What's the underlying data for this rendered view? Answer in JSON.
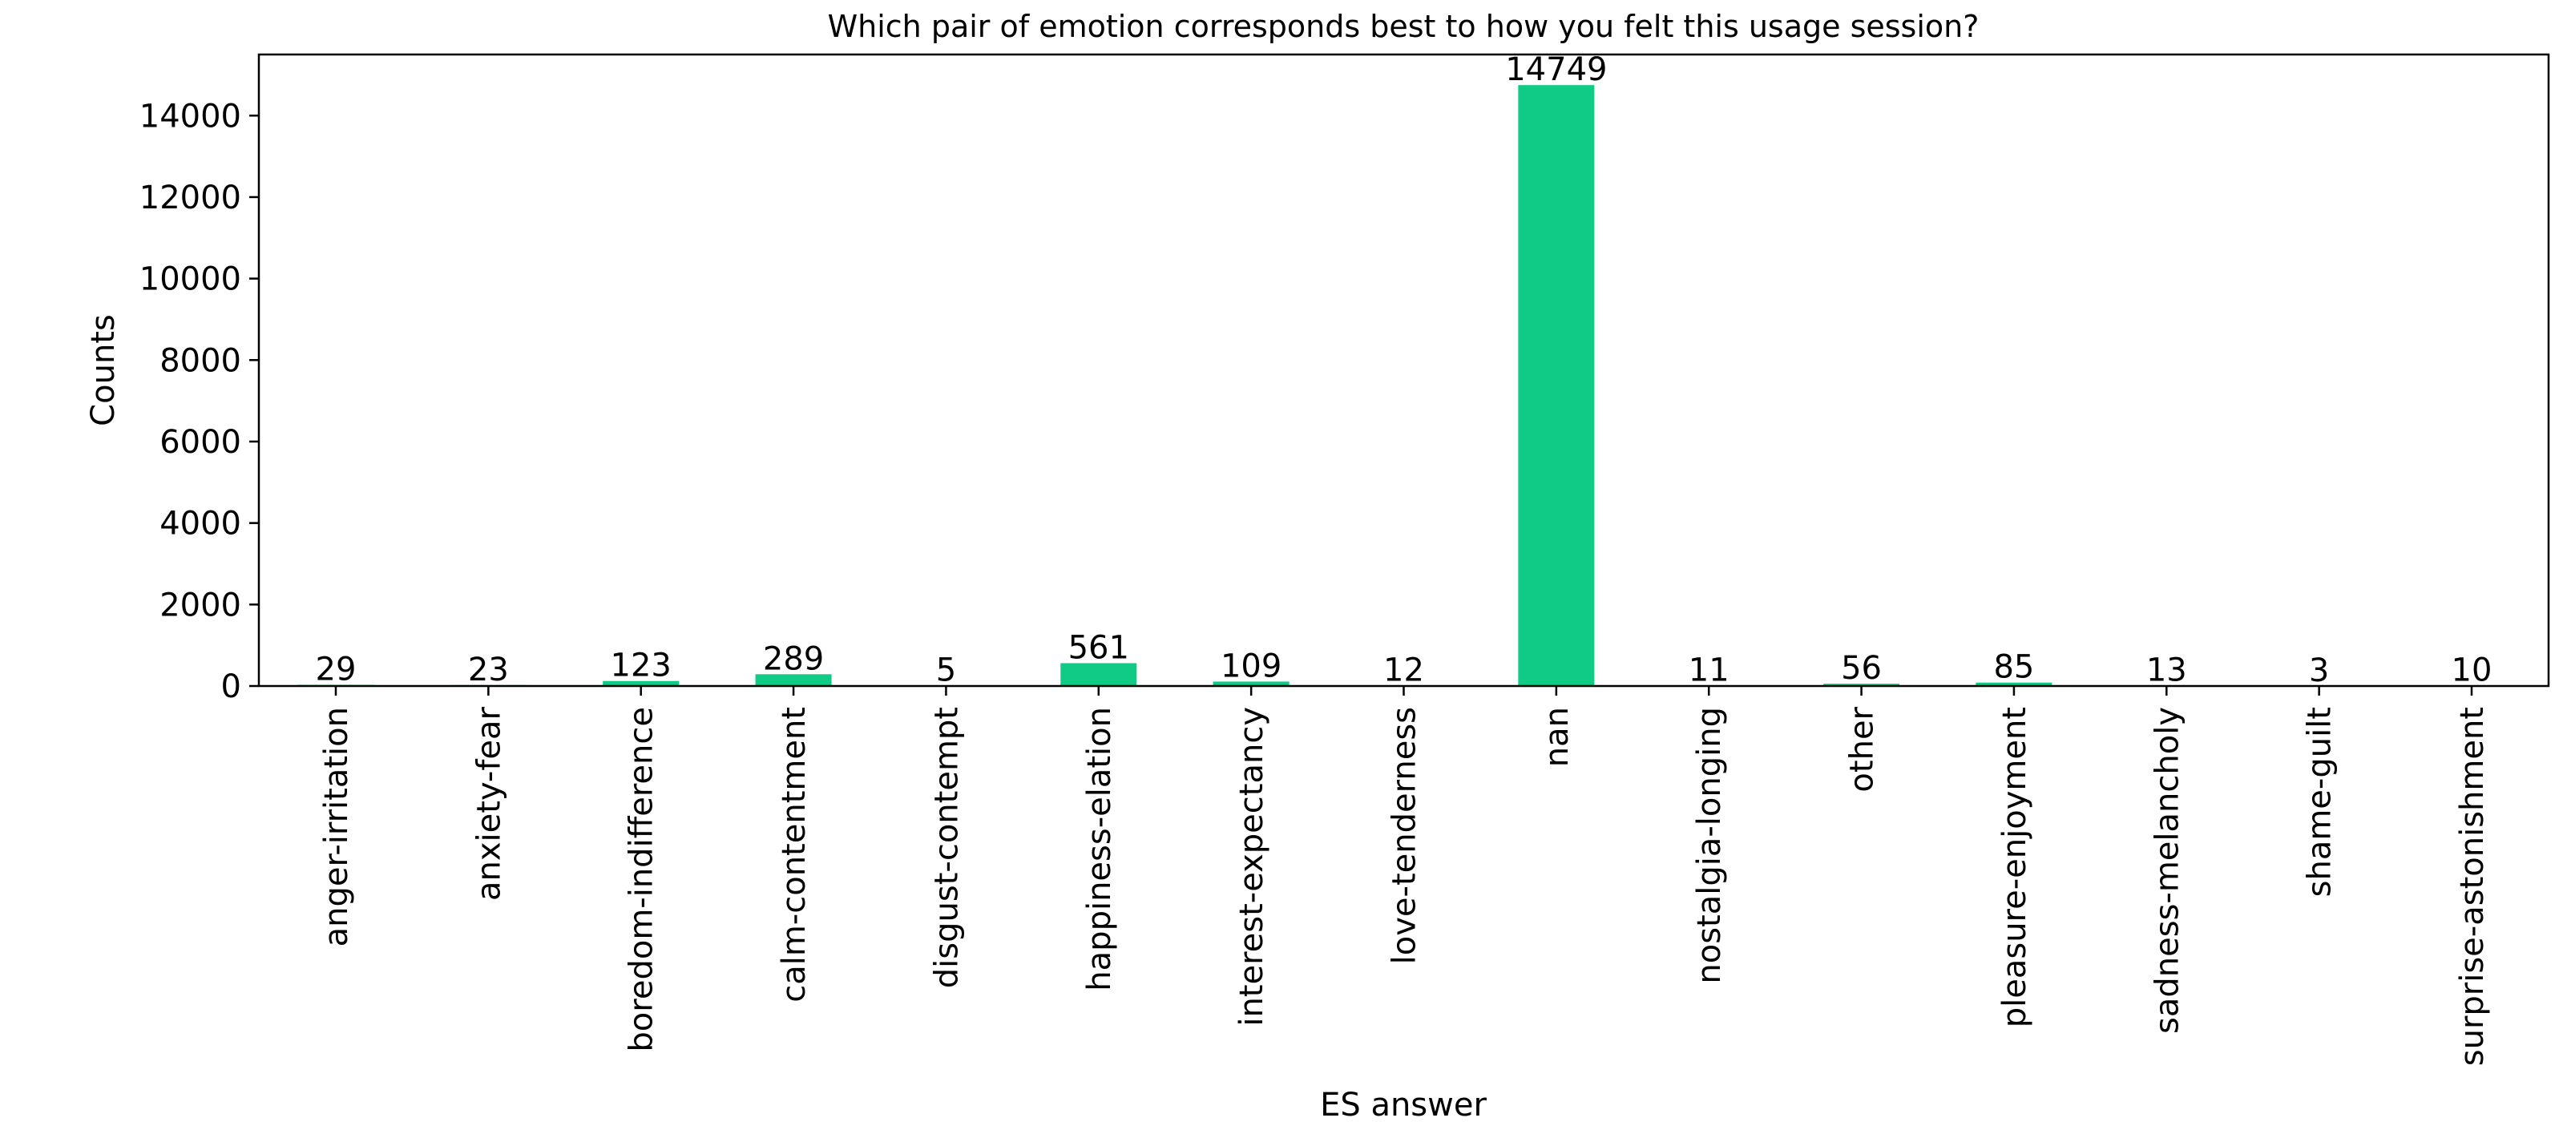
{
  "chart_data": {
    "type": "bar",
    "title": "Which pair of emotion corresponds best to how you felt this usage session?",
    "xlabel": "ES answer",
    "ylabel": "Counts",
    "categories": [
      "anger-irritation",
      "anxiety-fear",
      "boredom-indifference",
      "calm-contentment",
      "disgust-contempt",
      "happiness-elation",
      "interest-expectancy",
      "love-tenderness",
      "nan",
      "nostalgia-longing",
      "other",
      "pleasure-enjoyment",
      "sadness-melancholy",
      "shame-guilt",
      "surprise-astonishment"
    ],
    "values": [
      29,
      23,
      123,
      289,
      5,
      561,
      109,
      12,
      14749,
      11,
      56,
      85,
      13,
      3,
      10
    ],
    "ylim": [
      0,
      15500
    ],
    "yticks": [
      0,
      2000,
      4000,
      6000,
      8000,
      10000,
      12000,
      14000
    ],
    "grid": false,
    "legend": "none",
    "bar_color": "#0fcb85"
  }
}
